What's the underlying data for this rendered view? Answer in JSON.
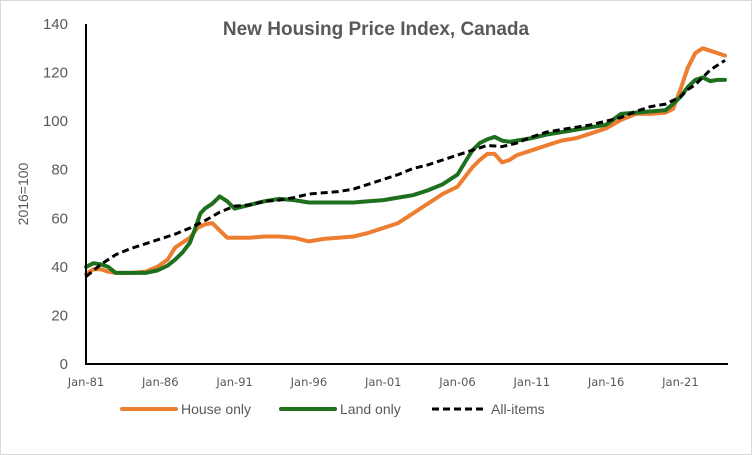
{
  "chart_data": {
    "type": "line",
    "title": "New Housing Price Index, Canada",
    "xlabel": "",
    "ylabel": "2016=100",
    "ylim": [
      0,
      140
    ],
    "yticks": [
      0,
      20,
      40,
      60,
      80,
      100,
      120,
      140
    ],
    "xlim": [
      1981.0,
      2024.2
    ],
    "xticks": [
      {
        "label": "Jan-81",
        "x": 1981
      },
      {
        "label": "Jan-86",
        "x": 1986
      },
      {
        "label": "Jan-91",
        "x": 1991
      },
      {
        "label": "Jan-96",
        "x": 1996
      },
      {
        "label": "Jan-01",
        "x": 2001
      },
      {
        "label": "Jan-06",
        "x": 2006
      },
      {
        "label": "Jan-11",
        "x": 2011
      },
      {
        "label": "Jan-16",
        "x": 2016
      },
      {
        "label": "Jan-21",
        "x": 2021
      }
    ],
    "grid": false,
    "legend_position": "bottom",
    "series": [
      {
        "name": "House only",
        "color": "#ED7D31",
        "style": "solid",
        "x": [
          1981.0,
          1981.5,
          1982.0,
          1982.5,
          1983.0,
          1984.0,
          1985.0,
          1985.8,
          1986.5,
          1987.0,
          1987.5,
          1988.0,
          1988.5,
          1989.0,
          1989.5,
          1990.0,
          1990.5,
          1991.0,
          1992.0,
          1993.0,
          1994.0,
          1995.0,
          1996.0,
          1997.0,
          1998.0,
          1999.0,
          2000.0,
          2001.0,
          2002.0,
          2003.0,
          2004.0,
          2005.0,
          2006.0,
          2006.5,
          2007.0,
          2007.5,
          2008.0,
          2008.5,
          2009.0,
          2009.5,
          2010.0,
          2011.0,
          2012.0,
          2013.0,
          2014.0,
          2015.0,
          2016.0,
          2017.0,
          2018.0,
          2019.0,
          2020.0,
          2020.5,
          2021.0,
          2021.5,
          2022.0,
          2022.5,
          2023.0,
          2023.5,
          2024.0
        ],
        "values": [
          37,
          39,
          39,
          38,
          37.5,
          37.5,
          38,
          40,
          43,
          48,
          50,
          52,
          56,
          57.5,
          58,
          55,
          52,
          52,
          52,
          52.5,
          52.5,
          52,
          50.5,
          51.5,
          52,
          52.5,
          54,
          56,
          58,
          62,
          66,
          70,
          73,
          77,
          81,
          84,
          86.5,
          86.5,
          83,
          84,
          86,
          88,
          90,
          92,
          93,
          95,
          97,
          100.5,
          103,
          103,
          103.5,
          105,
          113,
          122,
          128,
          130,
          129,
          128,
          127
        ]
      },
      {
        "name": "Land only",
        "color": "#1E6F1E",
        "style": "solid",
        "x": [
          1981.0,
          1981.5,
          1982.0,
          1982.5,
          1983.0,
          1984.0,
          1985.0,
          1985.8,
          1986.5,
          1987.0,
          1987.5,
          1988.0,
          1988.3,
          1988.7,
          1989.0,
          1989.5,
          1990.0,
          1990.5,
          1991.0,
          1992.0,
          1993.0,
          1994.0,
          1995.0,
          1996.0,
          1997.0,
          1998.0,
          1999.0,
          2000.0,
          2001.0,
          2002.0,
          2003.0,
          2004.0,
          2005.0,
          2006.0,
          2006.5,
          2007.0,
          2007.5,
          2008.0,
          2008.5,
          2009.0,
          2009.5,
          2010.0,
          2011.0,
          2012.0,
          2013.0,
          2014.0,
          2015.0,
          2016.0,
          2017.0,
          2018.0,
          2019.0,
          2020.0,
          2020.5,
          2021.0,
          2021.5,
          2022.0,
          2022.5,
          2023.0,
          2023.5,
          2024.0
        ],
        "values": [
          40,
          41.5,
          41,
          40,
          37.5,
          37.5,
          37.5,
          38.5,
          40.5,
          43,
          46,
          50,
          55,
          62,
          64,
          66,
          69,
          67,
          64,
          65.5,
          67,
          68,
          67.5,
          66.5,
          66.5,
          66.5,
          66.5,
          67,
          67.5,
          68.5,
          69.5,
          71.5,
          74,
          78,
          83,
          88,
          91,
          92.5,
          93.5,
          92,
          91.5,
          92,
          93,
          94.5,
          95.5,
          96.5,
          97.5,
          98.5,
          103,
          103.5,
          104,
          104.5,
          107,
          110,
          114,
          117,
          118,
          116.5,
          117,
          117
        ]
      },
      {
        "name": "All-items",
        "color": "#000000",
        "style": "dashed",
        "x": [
          1981.0,
          1982.0,
          1983.0,
          1984.0,
          1985.0,
          1986.0,
          1987.0,
          1988.0,
          1989.0,
          1990.0,
          1991.0,
          1992.0,
          1993.0,
          1994.0,
          1995.0,
          1996.0,
          1997.0,
          1998.0,
          1999.0,
          2000.0,
          2001.0,
          2002.0,
          2003.0,
          2004.0,
          2005.0,
          2006.0,
          2007.0,
          2008.0,
          2009.0,
          2010.0,
          2011.0,
          2012.0,
          2013.0,
          2014.0,
          2015.0,
          2016.0,
          2017.0,
          2018.0,
          2019.0,
          2020.0,
          2021.0,
          2021.5,
          2022.0,
          2022.5,
          2023.0,
          2023.5,
          2024.0
        ],
        "values": [
          36,
          41,
          45,
          47.5,
          49.5,
          51.5,
          53.5,
          56,
          59,
          62.5,
          65,
          65.5,
          67,
          67.5,
          68.5,
          70,
          70.5,
          71,
          72,
          74,
          76,
          78,
          80.5,
          82,
          84,
          86,
          88,
          90,
          89.5,
          91,
          93.5,
          95.5,
          96.5,
          97.5,
          98.5,
          100,
          101.5,
          104,
          106,
          107,
          110,
          113,
          115,
          118,
          121,
          123,
          125
        ]
      }
    ]
  }
}
